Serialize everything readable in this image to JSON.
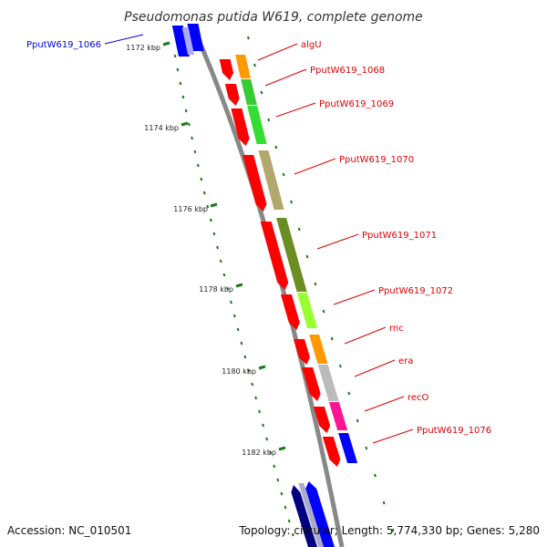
{
  "title": "Pseudomonas putida W619, complete genome",
  "footer": {
    "accession": "Accession: NC_010501",
    "info": "Topology: circular; Length: 5,774,330 bp; Genes: 5,280"
  },
  "colors": {
    "background": "#ffffff",
    "backbone": "#888888",
    "tick": "#1a7a1a",
    "label_red": "#dd0000",
    "label_blue": "#0000cc",
    "cds": "#ff0000",
    "cds_reverse": "#0000ff",
    "cds_dark": "#000080"
  },
  "ticks": [
    {
      "label": "1172 kbp",
      "major": true
    },
    {
      "label": "1174 kbp",
      "major": true
    },
    {
      "label": "1176 kbp",
      "major": true
    },
    {
      "label": "1178 kbp",
      "major": true
    },
    {
      "label": "1180 kbp",
      "major": true
    },
    {
      "label": "1182 kbp",
      "major": true
    }
  ],
  "genes": [
    {
      "name": "PputW619_1066",
      "color": "#0000cc",
      "cog_color": "#0000ff",
      "strand": "-"
    },
    {
      "name": "algU",
      "color": "#dd0000",
      "cog_color": "#ff9900",
      "strand": "+"
    },
    {
      "name": "PputW619_1068",
      "color": "#dd0000",
      "cog_color": "#33cc33",
      "strand": "+"
    },
    {
      "name": "PputW619_1069",
      "color": "#dd0000",
      "cog_color": "#33dd33",
      "strand": "+"
    },
    {
      "name": "PputW619_1070",
      "color": "#dd0000",
      "cog_color": "#b3a86b",
      "strand": "+"
    },
    {
      "name": "PputW619_1071",
      "color": "#dd0000",
      "cog_color": "#6b8e23",
      "strand": "+"
    },
    {
      "name": "PputW619_1072",
      "color": "#dd0000",
      "cog_color": "#99ff33",
      "strand": "+"
    },
    {
      "name": "rnc",
      "color": "#dd0000",
      "cog_color": "#ff9900",
      "strand": "+"
    },
    {
      "name": "era",
      "color": "#dd0000",
      "cog_color": "#bbbbbb",
      "strand": "+"
    },
    {
      "name": "recO",
      "color": "#dd0000",
      "cog_color": "#ff1493",
      "strand": "+"
    },
    {
      "name": "PputW619_1076",
      "color": "#dd0000",
      "cog_color": "#0000ff",
      "strand": "+"
    }
  ]
}
